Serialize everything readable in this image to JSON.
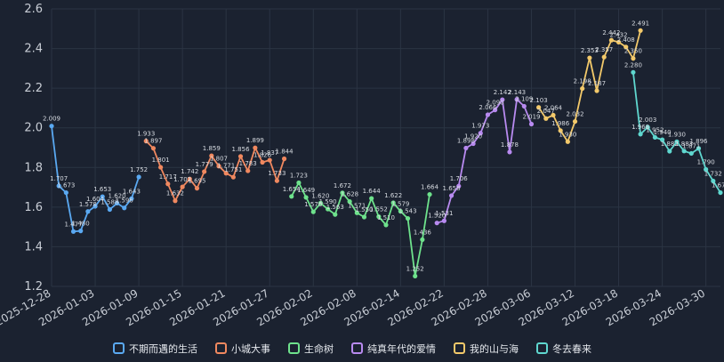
{
  "chart_data": {
    "type": "line",
    "title": "",
    "xlabel": "",
    "ylabel": "",
    "ylim": [
      1.2,
      2.6
    ],
    "yticks": [
      "1.2",
      "1.4",
      "1.6",
      "1.8",
      "2.0",
      "2.2",
      "2.4",
      "2.6"
    ],
    "grid": true,
    "legend_position": "bottom",
    "x_tick_labels": [
      "2025-12-28",
      "2026-01-03",
      "2026-01-09",
      "2026-01-15",
      "2026-01-21",
      "2026-01-27",
      "2026-02-02",
      "2026-02-08",
      "2026-02-14",
      "2026-02-22",
      "2026-02-28",
      "2026-03-06",
      "2026-03-12",
      "2026-03-18",
      "2026-03-24",
      "2026-03-30"
    ],
    "series": [
      {
        "name": "不期而遇的生活",
        "color": "#5aa9f2",
        "start": 0,
        "values": [
          2.009,
          1.707,
          1.673,
          1.477,
          1.48,
          1.578,
          1.604,
          1.653,
          1.588,
          1.62,
          1.596,
          1.643,
          1.752
        ]
      },
      {
        "name": "小城大事",
        "color": "#f0885f",
        "start": 13,
        "values": [
          1.933,
          1.897,
          1.801,
          1.717,
          1.632,
          1.702,
          1.742,
          1.695,
          1.779,
          1.859,
          1.807,
          1.771,
          1.751,
          1.856,
          1.783,
          1.899,
          1.826,
          1.837,
          1.733,
          1.844
        ]
      },
      {
        "name": "生命树",
        "color": "#6ee28c",
        "start": 33,
        "values": [
          1.654,
          1.723,
          1.649,
          1.576,
          1.62,
          1.59,
          1.563,
          1.672,
          1.628,
          1.571,
          1.55,
          1.644,
          1.552,
          1.51,
          1.622,
          1.579,
          1.543,
          1.252,
          1.436,
          1.664
        ]
      },
      {
        "name": "纯真年代的爱情",
        "color": "#b88af0",
        "start": 53,
        "values": [
          1.52,
          1.531,
          1.658,
          1.706,
          1.898,
          1.92,
          1.973,
          2.066,
          2.09,
          2.142,
          1.878,
          2.143,
          2.109,
          2.019
        ]
      },
      {
        "name": "我的山与海",
        "color": "#f3c96a",
        "start": 67,
        "values": [
          2.103,
          2.047,
          2.064,
          1.986,
          1.93,
          2.032,
          2.198,
          2.353,
          2.187,
          2.357,
          2.442,
          2.432,
          2.408,
          2.35,
          2.491
        ]
      },
      {
        "name": "冬去春来",
        "color": "#5fd7cf",
        "start": 80,
        "values": [
          2.28,
          1.968,
          2.003,
          1.952,
          1.94,
          1.882,
          1.93,
          1.883,
          1.871,
          1.896,
          1.79,
          1.732,
          1.673
        ]
      }
    ]
  }
}
